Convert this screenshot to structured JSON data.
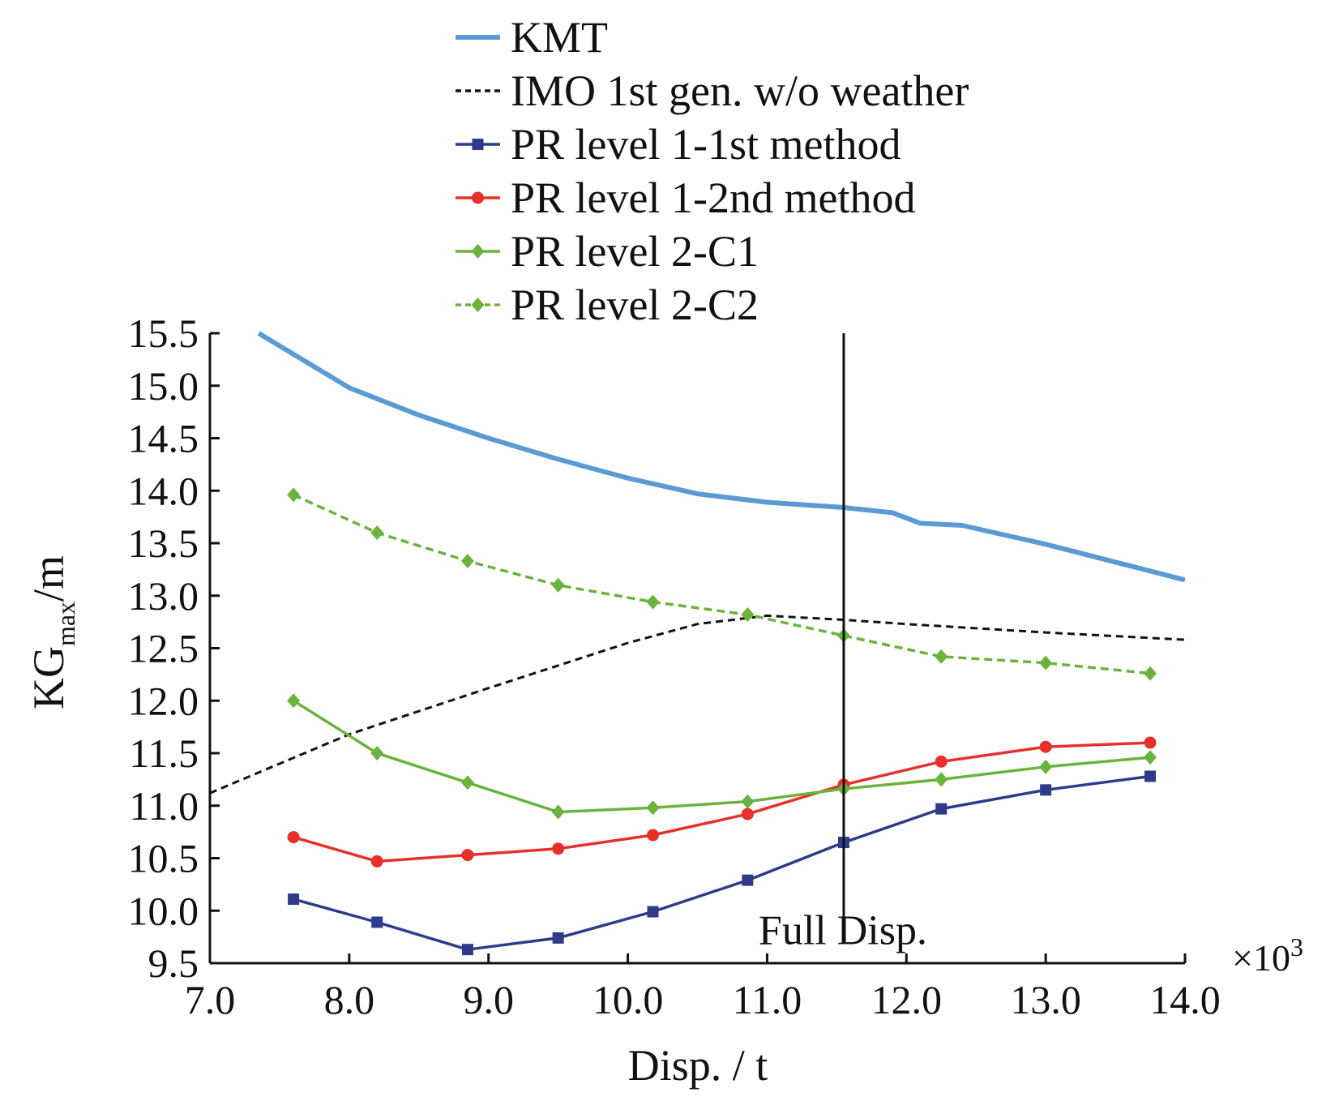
{
  "chart_data": {
    "type": "line",
    "title": "",
    "xlabel": "Disp. / t",
    "ylabel": "KG",
    "ylabel_subscript": "max",
    "ylabel_unit": "/m",
    "x_multiplier": "×10",
    "x_multiplier_exp": "3",
    "xlim": [
      7.0,
      14.0
    ],
    "ylim": [
      9.5,
      15.5
    ],
    "x_ticks": [
      "7.0",
      "8.0",
      "9.0",
      "10.0",
      "11.0",
      "12.0",
      "13.0",
      "14.0"
    ],
    "y_ticks": [
      "9.5",
      "10.0",
      "10.5",
      "11.0",
      "11.5",
      "12.0",
      "12.5",
      "13.0",
      "13.5",
      "14.0",
      "14.5",
      "15.0",
      "15.5"
    ],
    "legend_position": "top",
    "vline": {
      "x": 11.55,
      "label": "Full Disp."
    },
    "series": [
      {
        "name": "KMT",
        "color": "#5b9bd5",
        "style": "solid",
        "marker": "none",
        "x": [
          7.35,
          7.6,
          8.0,
          8.5,
          9.0,
          9.5,
          10.0,
          10.5,
          11.0,
          11.55,
          11.9,
          12.1,
          12.4,
          13.0,
          13.5,
          14.0
        ],
        "y": [
          15.5,
          15.3,
          14.98,
          14.72,
          14.5,
          14.3,
          14.12,
          13.97,
          13.89,
          13.84,
          13.79,
          13.69,
          13.67,
          13.49,
          13.32,
          13.15
        ]
      },
      {
        "name": "IMO 1st gen. w/o weather",
        "color": "#111111",
        "style": "dashed",
        "marker": "none",
        "x": [
          7.0,
          8.0,
          9.0,
          10.0,
          10.5,
          11.0,
          11.55,
          12.0,
          13.0,
          14.0
        ],
        "y": [
          11.12,
          11.68,
          12.12,
          12.55,
          12.73,
          12.81,
          12.77,
          12.73,
          12.65,
          12.58
        ]
      },
      {
        "name": "PR level 1-1st method",
        "color": "#2e3b8a",
        "style": "solid",
        "marker": "square",
        "x": [
          7.6,
          8.2,
          8.85,
          9.5,
          10.18,
          10.86,
          11.55,
          12.25,
          13.0,
          13.75
        ],
        "y": [
          10.11,
          9.89,
          9.63,
          9.74,
          9.99,
          10.29,
          10.65,
          10.97,
          11.15,
          11.28
        ]
      },
      {
        "name": "PR level 1-2nd method",
        "color": "#e8302a",
        "style": "solid",
        "marker": "circle",
        "x": [
          7.6,
          8.2,
          8.85,
          9.5,
          10.18,
          10.86,
          11.55,
          12.25,
          13.0,
          13.75
        ],
        "y": [
          10.7,
          10.47,
          10.53,
          10.59,
          10.72,
          10.92,
          11.2,
          11.42,
          11.56,
          11.6
        ]
      },
      {
        "name": "PR level 2-C1",
        "color": "#6ab43e",
        "style": "solid",
        "marker": "diamond",
        "x": [
          7.6,
          8.2,
          8.85,
          9.5,
          10.18,
          10.86,
          11.55,
          12.25,
          13.0,
          13.75
        ],
        "y": [
          12.0,
          11.5,
          11.22,
          10.94,
          10.98,
          11.04,
          11.16,
          11.25,
          11.37,
          11.46
        ]
      },
      {
        "name": "PR level 2-C2",
        "color": "#6ab43e",
        "style": "dashed",
        "marker": "diamond",
        "x": [
          7.6,
          8.2,
          8.85,
          9.5,
          10.18,
          10.86,
          11.55,
          12.25,
          13.0,
          13.75
        ],
        "y": [
          13.96,
          13.6,
          13.33,
          13.1,
          12.94,
          12.82,
          12.62,
          12.42,
          12.36,
          12.26
        ]
      }
    ]
  }
}
